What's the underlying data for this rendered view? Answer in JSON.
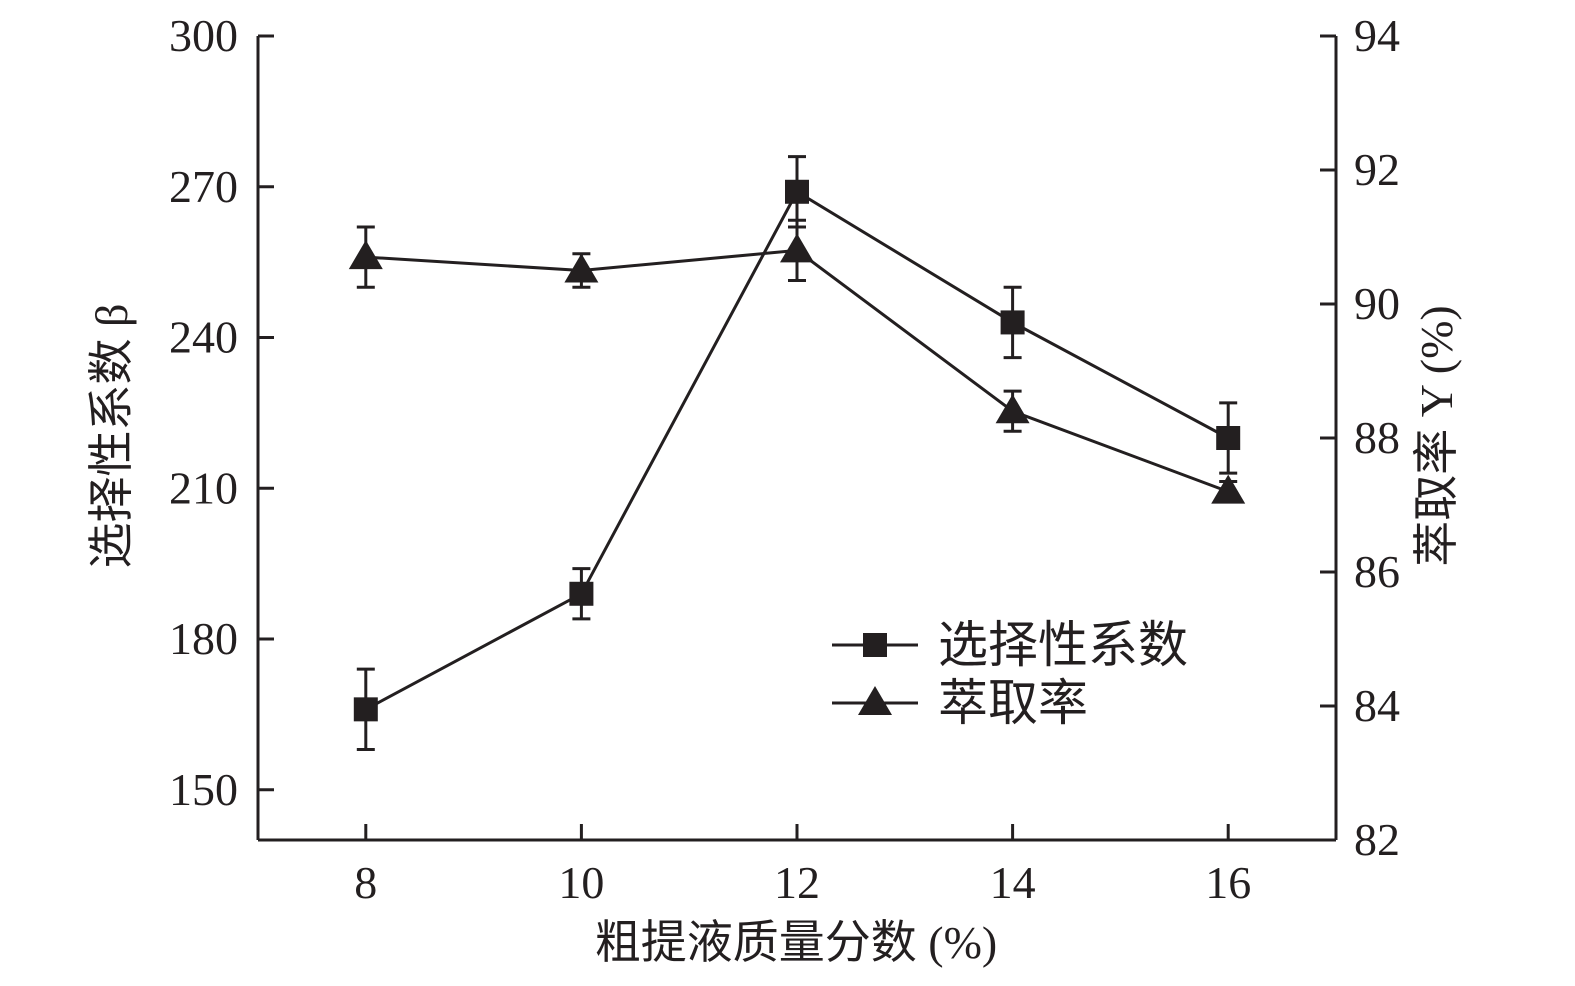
{
  "chart_data": {
    "type": "line",
    "xlabel": "粗提液质量分数 (%)",
    "ylabel_left": "选择性系数 β",
    "ylabel_right": "萃取率 Y (%)",
    "x_ticks": [
      "8",
      "10",
      "12",
      "14",
      "16"
    ],
    "xlim": [
      7,
      17
    ],
    "ylim_left": [
      140,
      300
    ],
    "ylim_right": [
      82,
      94
    ],
    "y_left_ticks": [
      "150",
      "180",
      "210",
      "240",
      "270",
      "300"
    ],
    "y_right_ticks": [
      "82",
      "84",
      "86",
      "88",
      "90",
      "92",
      "94"
    ],
    "grid": false,
    "legend_position": "lower-right",
    "color": "#231f20",
    "series": [
      {
        "name": "选择性系数",
        "axis": "left",
        "marker": "square",
        "x": [
          8,
          10,
          12,
          14,
          16
        ],
        "y": [
          166,
          189,
          269,
          243,
          220
        ],
        "error": [
          8,
          5,
          7,
          7,
          7
        ]
      },
      {
        "name": "萃取率",
        "axis": "right",
        "marker": "triangle",
        "x": [
          8,
          10,
          12,
          14,
          16
        ],
        "y": [
          90.7,
          90.5,
          90.8,
          88.4,
          87.2
        ],
        "error": [
          0.45,
          0.25,
          0.45,
          0.3,
          0.15
        ]
      }
    ]
  }
}
